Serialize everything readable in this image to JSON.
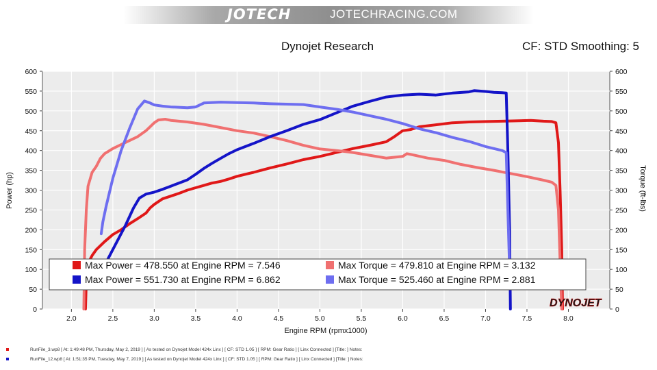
{
  "banner": {
    "logo": "JOTECH",
    "site": "JOTECHRACING.COM"
  },
  "header": {
    "title": "Dynojet Research",
    "cf_info": "CF: STD Smoothing: 5"
  },
  "chart_data": {
    "type": "line",
    "xlabel": "Engine RPM (rpmx1000)",
    "ylabel_left": "Power (hp)",
    "ylabel_right": "Torque (ft-lbs)",
    "xlim": [
      1.65,
      8.5
    ],
    "ylim": [
      0,
      600
    ],
    "x_ticks": [
      "2.0",
      "2.5",
      "3.0",
      "3.5",
      "4.0",
      "4.5",
      "5.0",
      "5.5",
      "6.0",
      "6.5",
      "7.0",
      "7.5",
      "8.0"
    ],
    "y_ticks": [
      "0",
      "50",
      "100",
      "150",
      "200",
      "250",
      "300",
      "350",
      "400",
      "450",
      "500",
      "550",
      "600"
    ],
    "grid": true,
    "brand": "DYNOJET",
    "series": [
      {
        "kind": "power",
        "color": "#e01818",
        "points": [
          [
            2.17,
            0
          ],
          [
            2.18,
            70
          ],
          [
            2.2,
            115
          ],
          [
            2.25,
            135
          ],
          [
            2.3,
            150
          ],
          [
            2.4,
            170
          ],
          [
            2.5,
            188
          ],
          [
            2.6,
            200
          ],
          [
            2.7,
            215
          ],
          [
            2.8,
            228
          ],
          [
            2.9,
            242
          ],
          [
            2.95,
            255
          ],
          [
            3.0,
            264
          ],
          [
            3.1,
            278
          ],
          [
            3.2,
            285
          ],
          [
            3.3,
            292
          ],
          [
            3.4,
            300
          ],
          [
            3.5,
            306
          ],
          [
            3.6,
            312
          ],
          [
            3.7,
            318
          ],
          [
            3.8,
            322
          ],
          [
            3.9,
            328
          ],
          [
            4.0,
            335
          ],
          [
            4.2,
            345
          ],
          [
            4.4,
            356
          ],
          [
            4.6,
            366
          ],
          [
            4.8,
            377
          ],
          [
            5.0,
            385
          ],
          [
            5.2,
            395
          ],
          [
            5.4,
            405
          ],
          [
            5.6,
            413
          ],
          [
            5.8,
            422
          ],
          [
            5.9,
            435
          ],
          [
            6.0,
            450
          ],
          [
            6.1,
            453
          ],
          [
            6.2,
            460
          ],
          [
            6.4,
            465
          ],
          [
            6.6,
            470
          ],
          [
            6.8,
            472
          ],
          [
            7.0,
            473
          ],
          [
            7.2,
            474
          ],
          [
            7.4,
            475
          ],
          [
            7.546,
            476
          ],
          [
            7.7,
            474
          ],
          [
            7.8,
            473
          ],
          [
            7.85,
            470
          ],
          [
            7.88,
            420
          ],
          [
            7.9,
            300
          ],
          [
            7.92,
            150
          ],
          [
            7.93,
            0
          ]
        ]
      },
      {
        "kind": "torque",
        "color": "#f07070",
        "points": [
          [
            2.15,
            0
          ],
          [
            2.16,
            150
          ],
          [
            2.18,
            250
          ],
          [
            2.2,
            310
          ],
          [
            2.25,
            345
          ],
          [
            2.3,
            360
          ],
          [
            2.35,
            380
          ],
          [
            2.4,
            392
          ],
          [
            2.5,
            405
          ],
          [
            2.6,
            415
          ],
          [
            2.7,
            425
          ],
          [
            2.8,
            435
          ],
          [
            2.9,
            450
          ],
          [
            3.0,
            470
          ],
          [
            3.05,
            477
          ],
          [
            3.132,
            479
          ],
          [
            3.2,
            476
          ],
          [
            3.3,
            474
          ],
          [
            3.4,
            472
          ],
          [
            3.6,
            466
          ],
          [
            3.8,
            458
          ],
          [
            4.0,
            450
          ],
          [
            4.2,
            444
          ],
          [
            4.4,
            435
          ],
          [
            4.6,
            425
          ],
          [
            4.8,
            413
          ],
          [
            5.0,
            404
          ],
          [
            5.2,
            400
          ],
          [
            5.4,
            395
          ],
          [
            5.6,
            388
          ],
          [
            5.8,
            381
          ],
          [
            6.0,
            385
          ],
          [
            6.05,
            392
          ],
          [
            6.1,
            390
          ],
          [
            6.3,
            381
          ],
          [
            6.5,
            375
          ],
          [
            6.7,
            365
          ],
          [
            6.9,
            357
          ],
          [
            7.1,
            350
          ],
          [
            7.3,
            342
          ],
          [
            7.5,
            334
          ],
          [
            7.7,
            325
          ],
          [
            7.8,
            320
          ],
          [
            7.85,
            312
          ],
          [
            7.88,
            250
          ],
          [
            7.9,
            120
          ],
          [
            7.92,
            0
          ]
        ]
      },
      {
        "kind": "power",
        "color": "#1414c8",
        "points": [
          [
            2.38,
            100
          ],
          [
            2.45,
            130
          ],
          [
            2.55,
            170
          ],
          [
            2.65,
            210
          ],
          [
            2.75,
            255
          ],
          [
            2.82,
            280
          ],
          [
            2.9,
            290
          ],
          [
            3.0,
            295
          ],
          [
            3.1,
            302
          ],
          [
            3.2,
            310
          ],
          [
            3.3,
            318
          ],
          [
            3.4,
            326
          ],
          [
            3.5,
            340
          ],
          [
            3.6,
            355
          ],
          [
            3.7,
            368
          ],
          [
            3.8,
            380
          ],
          [
            3.9,
            392
          ],
          [
            4.0,
            402
          ],
          [
            4.2,
            418
          ],
          [
            4.4,
            435
          ],
          [
            4.6,
            450
          ],
          [
            4.8,
            466
          ],
          [
            5.0,
            478
          ],
          [
            5.2,
            495
          ],
          [
            5.4,
            512
          ],
          [
            5.6,
            524
          ],
          [
            5.8,
            535
          ],
          [
            6.0,
            540
          ],
          [
            6.2,
            542
          ],
          [
            6.4,
            540
          ],
          [
            6.6,
            545
          ],
          [
            6.8,
            548
          ],
          [
            6.862,
            551
          ],
          [
            7.0,
            549
          ],
          [
            7.1,
            547
          ],
          [
            7.2,
            546
          ],
          [
            7.25,
            545
          ],
          [
            7.27,
            400
          ],
          [
            7.29,
            200
          ],
          [
            7.3,
            0
          ]
        ]
      },
      {
        "kind": "torque",
        "color": "#6e6ef0",
        "points": [
          [
            2.36,
            190
          ],
          [
            2.38,
            220
          ],
          [
            2.42,
            260
          ],
          [
            2.5,
            330
          ],
          [
            2.6,
            400
          ],
          [
            2.7,
            455
          ],
          [
            2.8,
            505
          ],
          [
            2.881,
            525
          ],
          [
            2.95,
            520
          ],
          [
            3.0,
            515
          ],
          [
            3.1,
            512
          ],
          [
            3.2,
            510
          ],
          [
            3.4,
            508
          ],
          [
            3.5,
            510
          ],
          [
            3.6,
            520
          ],
          [
            3.8,
            522
          ],
          [
            4.0,
            521
          ],
          [
            4.2,
            520
          ],
          [
            4.4,
            518
          ],
          [
            4.6,
            517
          ],
          [
            4.8,
            516
          ],
          [
            5.0,
            510
          ],
          [
            5.2,
            504
          ],
          [
            5.4,
            497
          ],
          [
            5.6,
            488
          ],
          [
            5.8,
            479
          ],
          [
            6.0,
            468
          ],
          [
            6.2,
            455
          ],
          [
            6.4,
            445
          ],
          [
            6.6,
            433
          ],
          [
            6.8,
            423
          ],
          [
            7.0,
            410
          ],
          [
            7.2,
            400
          ],
          [
            7.25,
            395
          ],
          [
            7.27,
            250
          ],
          [
            7.29,
            100
          ]
        ]
      }
    ],
    "legend": {
      "entries": [
        {
          "color": "#e01818",
          "text": "Max Power = 478.550 at Engine RPM = 7.546"
        },
        {
          "color": "#f07070",
          "text": "Max Torque = 479.810 at Engine RPM = 3.132"
        },
        {
          "color": "#1414c8",
          "text": "Max Power = 551.730 at Engine RPM = 6.862"
        },
        {
          "color": "#6e6ef0",
          "text": "Max Torque = 525.460 at Engine RPM = 2.881"
        }
      ]
    }
  },
  "footer": {
    "runs": [
      {
        "color": "#e01818",
        "text": "RunFile_3.wp8 [ At: 1:49:48 PM, Thursday, May 2, 2019 ] [ As tested on Dynojet Model 424x Linx ] [ CF: STD 1.05 ] [ RPM: Gear Ratio ] [ Linx Connected ] [Title: ]   Notes:"
      },
      {
        "color": "#1414c8",
        "text": "RunFile_12.wp8 [ At: 1:51:35 PM, Tuesday, May 7, 2019 ] [ As tested on Dynojet Model 424x Linx ] [ CF: STD 1.05 ] [ RPM: Gear Ratio ] [ Linx Connected ] [Title: ]   Notes:"
      }
    ]
  }
}
